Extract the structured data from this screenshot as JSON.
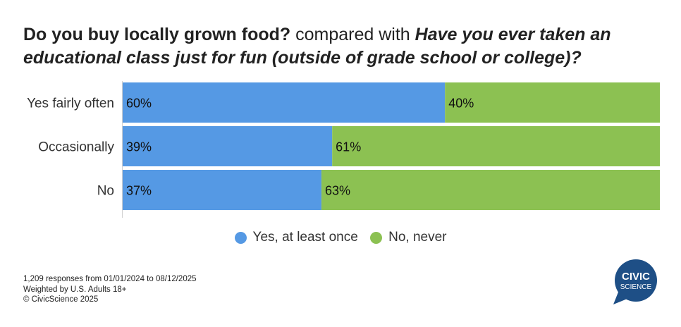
{
  "title": {
    "part1": "Do you buy locally grown food?",
    "part2": " compared with ",
    "part3": "Have you ever taken an educational class just for fun (outside of grade school or college)?"
  },
  "colors": {
    "yes": "#5599e4",
    "no": "#8cc152",
    "logo": "#1e4f86"
  },
  "chart_data": {
    "type": "bar",
    "orientation": "horizontal",
    "stacked": true,
    "percent_stacked": true,
    "categories": [
      "Yes fairly often",
      "Occasionally",
      "No"
    ],
    "series": [
      {
        "name": "Yes, at least once",
        "values": [
          60,
          39,
          37
        ],
        "labels": [
          "60%",
          "39%",
          "37%"
        ]
      },
      {
        "name": "No, never",
        "values": [
          40,
          61,
          63
        ],
        "labels": [
          "40%",
          "61%",
          "63%"
        ]
      }
    ],
    "xlim": [
      0,
      100
    ],
    "legend_position": "bottom"
  },
  "legend": [
    "Yes, at least once",
    "No, never"
  ],
  "footer": {
    "line1": "1,209  responses from 01/01/2024 to 08/12/2025",
    "line2": "Weighted by U.S. Adults 18+",
    "line3": "© CivicScience 2025"
  },
  "logo": {
    "line1": "CIVIC",
    "line2": "SCIENCE"
  }
}
